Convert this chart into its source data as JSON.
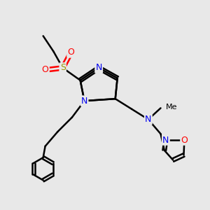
{
  "background_color": "#e8e8e8",
  "atom_colors": {
    "N": "#0000ee",
    "O": "#ff0000",
    "S": "#999900",
    "C": "#000000"
  },
  "bond_color": "#000000",
  "bond_width": 1.8,
  "figsize": [
    3.0,
    3.0
  ],
  "dpi": 100,
  "xlim": [
    0,
    10
  ],
  "ylim": [
    0,
    10
  ]
}
